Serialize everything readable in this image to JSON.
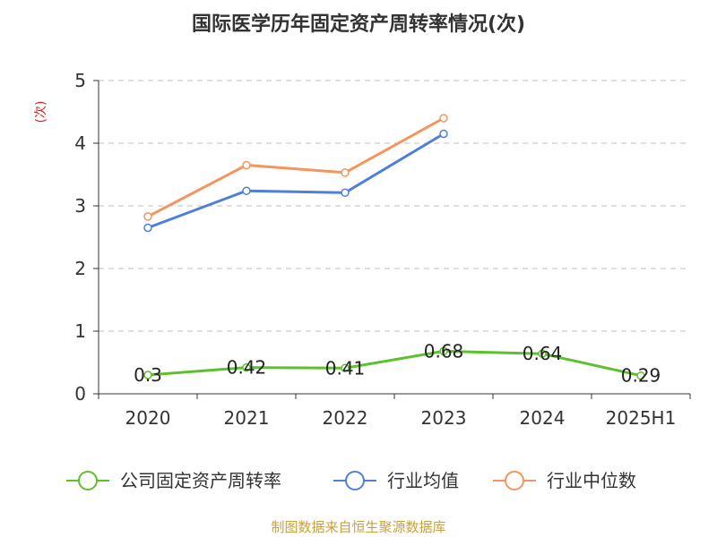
{
  "chart_data": {
    "type": "line",
    "title": "国际医学历年固定资产周转率情况(次)",
    "ylabel": "(次)",
    "xlabel": "",
    "categories": [
      "2020",
      "2021",
      "2022",
      "2023",
      "2024",
      "2025H1"
    ],
    "ylim": [
      0,
      5
    ],
    "yticks": [
      "0",
      "1",
      "2",
      "3",
      "4",
      "5"
    ],
    "grid": true,
    "legend_position": "bottom",
    "series": [
      {
        "name": "公司固定资产周转率",
        "values": [
          0.3,
          0.42,
          0.41,
          0.68,
          0.64,
          0.29
        ],
        "labels": [
          "0.3",
          "0.42",
          "0.41",
          "0.68",
          "0.64",
          "0.29"
        ],
        "color": "#5cc12c"
      },
      {
        "name": "行业均值",
        "values": [
          2.65,
          3.24,
          3.21,
          4.15,
          null,
          null
        ],
        "color": "#4f7fd8"
      },
      {
        "name": "行业中位数",
        "values": [
          2.83,
          3.65,
          3.53,
          4.4,
          null,
          null
        ],
        "color": "#f5945c"
      }
    ],
    "source": "制图数据来自恒生聚源数据库"
  }
}
